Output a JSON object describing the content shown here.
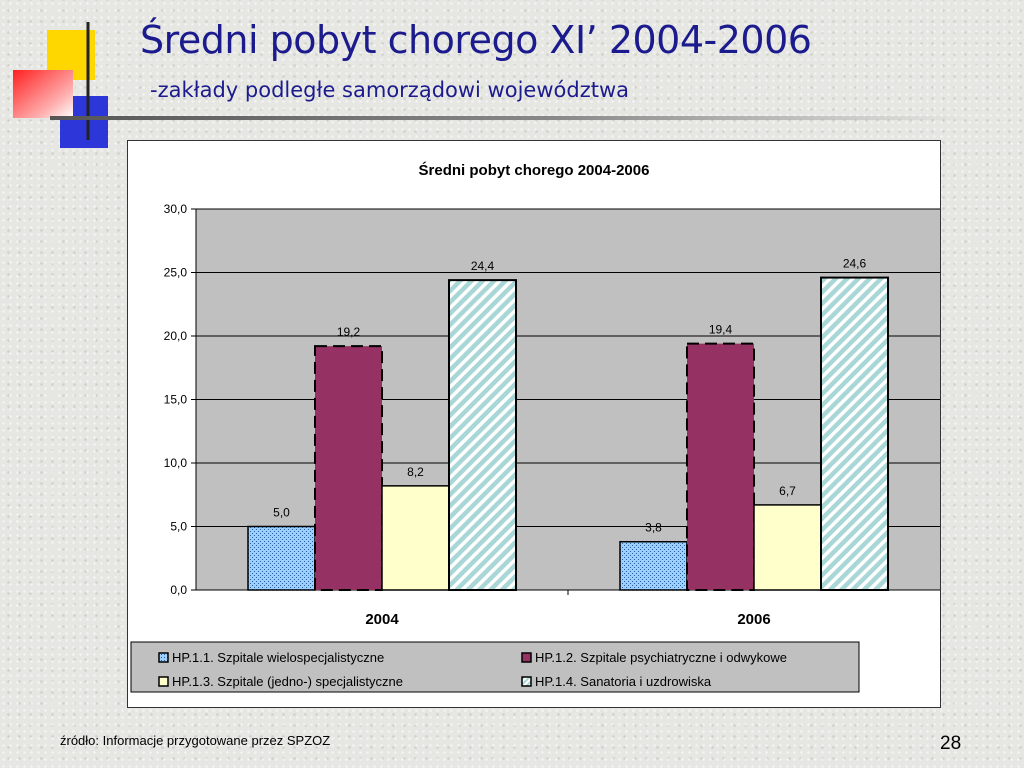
{
  "slide": {
    "title": "Średni pobyt chorego XI’ 2004-2006",
    "subtitle": "-zakłady podległe samorządowi województwa",
    "source": "źródło: Informacje przygotowane przez SPZOZ",
    "page_number": "28"
  },
  "colors": {
    "title_text": "#1b1b8e",
    "plot_background": "#c0c0c0",
    "series": [
      "#9ecfff",
      "#953163",
      "#ffffcc",
      "#a9d6d6"
    ]
  },
  "chart_data": {
    "type": "bar",
    "title": "Średni pobyt chorego 2004-2006",
    "categories": [
      "2004",
      "2006"
    ],
    "series": [
      {
        "name": "HP.1.1. Szpitale wielospecjalistyczne",
        "values": [
          5.0,
          3.8
        ],
        "labels": [
          "5,0",
          "3,8"
        ],
        "pattern": "dotted"
      },
      {
        "name": "HP.1.2. Szpitale psychiatryczne i odwykowe",
        "values": [
          19.2,
          19.4
        ],
        "labels": [
          "19,2",
          "19,4"
        ],
        "pattern": "solid-dashed-border"
      },
      {
        "name": "HP.1.3. Szpitale (jedno-) specjalistyczne",
        "values": [
          8.2,
          6.7
        ],
        "labels": [
          "8,2",
          "6,7"
        ],
        "pattern": "solid"
      },
      {
        "name": "HP.1.4. Sanatoria i uzdrowiska",
        "values": [
          24.4,
          24.6
        ],
        "labels": [
          "24,4",
          "24,6"
        ],
        "pattern": "diagonal-stripes"
      }
    ],
    "y_ticks": [
      "0,0",
      "5,0",
      "10,0",
      "15,0",
      "20,0",
      "25,0",
      "30,0"
    ],
    "ylim": [
      0,
      30
    ],
    "grid": true,
    "legend_position": "bottom"
  }
}
